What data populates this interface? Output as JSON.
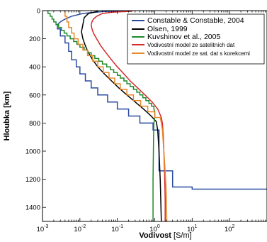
{
  "chart_data": {
    "type": "line",
    "title": "",
    "xlabel_main": "Vodivost",
    "xlabel_unit": " [S/m]",
    "ylabel": "Hloubka [km]",
    "x_scale": "log",
    "xlim": [
      0.001,
      1000
    ],
    "ylim": [
      1500,
      0
    ],
    "y_inverted": true,
    "grid": false,
    "legend_position": "top-right",
    "x_ticks": [
      {
        "value": 0.001,
        "base": "10",
        "exp": "-3"
      },
      {
        "value": 0.01,
        "base": "10",
        "exp": "-2"
      },
      {
        "value": 0.1,
        "base": "10",
        "exp": "-1"
      },
      {
        "value": 1,
        "base": "10",
        "exp": "0"
      },
      {
        "value": 10,
        "base": "10",
        "exp": "1"
      },
      {
        "value": 100,
        "base": "10",
        "exp": "2"
      }
    ],
    "y_ticks": [
      {
        "value": 0,
        "label": "0"
      },
      {
        "value": 200,
        "label": "200"
      },
      {
        "value": 400,
        "label": "400"
      },
      {
        "value": 600,
        "label": "600"
      },
      {
        "value": 800,
        "label": "800"
      },
      {
        "value": 1000,
        "label": "1000"
      },
      {
        "value": 1200,
        "label": "1200"
      },
      {
        "value": 1400,
        "label": "1400"
      }
    ],
    "series": [
      {
        "name": "Constable & Constable, 2004",
        "color": "#2a4aa0",
        "style": "step",
        "points": [
          [
            0.2,
            0
          ],
          [
            0.04,
            7
          ],
          [
            0.012,
            20
          ],
          [
            0.006,
            40
          ],
          [
            0.004,
            60
          ],
          [
            0.003,
            80
          ],
          [
            0.0025,
            100
          ],
          [
            0.0025,
            130
          ],
          [
            0.003,
            130
          ],
          [
            0.003,
            180
          ],
          [
            0.004,
            180
          ],
          [
            0.004,
            230
          ],
          [
            0.005,
            230
          ],
          [
            0.005,
            290
          ],
          [
            0.006,
            290
          ],
          [
            0.006,
            350
          ],
          [
            0.008,
            350
          ],
          [
            0.008,
            400
          ],
          [
            0.01,
            400
          ],
          [
            0.01,
            450
          ],
          [
            0.014,
            450
          ],
          [
            0.014,
            500
          ],
          [
            0.02,
            500
          ],
          [
            0.02,
            550
          ],
          [
            0.03,
            550
          ],
          [
            0.03,
            600
          ],
          [
            0.055,
            600
          ],
          [
            0.055,
            650
          ],
          [
            0.1,
            650
          ],
          [
            0.1,
            700
          ],
          [
            0.2,
            700
          ],
          [
            0.2,
            750
          ],
          [
            0.4,
            750
          ],
          [
            0.4,
            800
          ],
          [
            0.9,
            800
          ],
          [
            0.9,
            850
          ],
          [
            1.3,
            850
          ],
          [
            1.3,
            1140
          ],
          [
            3,
            1140
          ],
          [
            3,
            1255
          ],
          [
            10,
            1255
          ],
          [
            10,
            1270
          ],
          [
            1000,
            1270
          ]
        ]
      },
      {
        "name": "Olsen, 1999",
        "color": "#000000",
        "style": "step",
        "points": [
          [
            0.03,
            5
          ],
          [
            0.017,
            20
          ],
          [
            0.013,
            50
          ],
          [
            0.012,
            100
          ],
          [
            0.011,
            150
          ],
          [
            0.012,
            200
          ],
          [
            0.014,
            250
          ],
          [
            0.017,
            300
          ],
          [
            0.022,
            350
          ],
          [
            0.03,
            400
          ],
          [
            0.045,
            450
          ],
          [
            0.07,
            500
          ],
          [
            0.11,
            550
          ],
          [
            0.18,
            600
          ],
          [
            0.3,
            650
          ],
          [
            0.5,
            700
          ],
          [
            0.8,
            750
          ],
          [
            1.1,
            790
          ],
          [
            1.2,
            850
          ],
          [
            1.3,
            1000
          ],
          [
            1.4,
            1200
          ],
          [
            1.5,
            1500
          ]
        ]
      },
      {
        "name": "Kuvshinov et al., 2005",
        "color": "#1f8a2a",
        "style": "step",
        "points": [
          [
            0.0014,
            0
          ],
          [
            0.0014,
            20
          ],
          [
            0.0016,
            20
          ],
          [
            0.0016,
            40
          ],
          [
            0.0018,
            40
          ],
          [
            0.0018,
            60
          ],
          [
            0.002,
            60
          ],
          [
            0.002,
            80
          ],
          [
            0.0023,
            80
          ],
          [
            0.0023,
            100
          ],
          [
            0.0027,
            100
          ],
          [
            0.0027,
            120
          ],
          [
            0.0032,
            120
          ],
          [
            0.0032,
            140
          ],
          [
            0.0038,
            140
          ],
          [
            0.0038,
            160
          ],
          [
            0.0045,
            160
          ],
          [
            0.0045,
            180
          ],
          [
            0.0055,
            180
          ],
          [
            0.0055,
            200
          ],
          [
            0.0068,
            200
          ],
          [
            0.0068,
            220
          ],
          [
            0.0083,
            220
          ],
          [
            0.0083,
            240
          ],
          [
            0.01,
            240
          ],
          [
            0.01,
            260
          ],
          [
            0.013,
            260
          ],
          [
            0.013,
            280
          ],
          [
            0.016,
            280
          ],
          [
            0.016,
            300
          ],
          [
            0.02,
            300
          ],
          [
            0.02,
            320
          ],
          [
            0.025,
            320
          ],
          [
            0.025,
            340
          ],
          [
            0.032,
            340
          ],
          [
            0.032,
            360
          ],
          [
            0.04,
            360
          ],
          [
            0.04,
            380
          ],
          [
            0.052,
            380
          ],
          [
            0.052,
            400
          ],
          [
            0.065,
            400
          ],
          [
            0.065,
            420
          ],
          [
            0.08,
            420
          ],
          [
            0.08,
            440
          ],
          [
            0.1,
            440
          ],
          [
            0.1,
            460
          ],
          [
            0.12,
            460
          ],
          [
            0.12,
            480
          ],
          [
            0.15,
            480
          ],
          [
            0.15,
            500
          ],
          [
            0.18,
            500
          ],
          [
            0.18,
            520
          ],
          [
            0.22,
            520
          ],
          [
            0.22,
            540
          ],
          [
            0.27,
            540
          ],
          [
            0.27,
            560
          ],
          [
            0.33,
            560
          ],
          [
            0.33,
            580
          ],
          [
            0.4,
            580
          ],
          [
            0.4,
            600
          ],
          [
            0.48,
            600
          ],
          [
            0.48,
            620
          ],
          [
            0.58,
            620
          ],
          [
            0.58,
            640
          ],
          [
            0.7,
            640
          ],
          [
            0.7,
            660
          ],
          [
            0.82,
            660
          ],
          [
            0.82,
            680
          ],
          [
            0.95,
            680
          ],
          [
            0.95,
            700
          ],
          [
            1.0,
            720
          ],
          [
            1.0,
            760
          ],
          [
            0.95,
            800
          ],
          [
            0.93,
            900
          ],
          [
            0.92,
            1000
          ],
          [
            0.9,
            1200
          ],
          [
            0.9,
            1500
          ]
        ]
      },
      {
        "name": "Vodivostní model ze satelitních dat",
        "color": "#d42a2a",
        "style": "line",
        "points": [
          [
            0.25,
            5
          ],
          [
            0.08,
            10
          ],
          [
            0.04,
            20
          ],
          [
            0.028,
            40
          ],
          [
            0.023,
            60
          ],
          [
            0.021,
            80
          ],
          [
            0.02,
            100
          ],
          [
            0.021,
            130
          ],
          [
            0.023,
            160
          ],
          [
            0.028,
            200
          ],
          [
            0.036,
            250
          ],
          [
            0.05,
            300
          ],
          [
            0.07,
            350
          ],
          [
            0.1,
            400
          ],
          [
            0.15,
            450
          ],
          [
            0.22,
            500
          ],
          [
            0.35,
            550
          ],
          [
            0.55,
            600
          ],
          [
            0.85,
            650
          ],
          [
            1.2,
            700
          ],
          [
            1.5,
            760
          ],
          [
            1.6,
            800
          ],
          [
            1.7,
            900
          ],
          [
            1.75,
            1000
          ],
          [
            1.8,
            1100
          ],
          [
            1.85,
            1200
          ],
          [
            1.9,
            1350
          ],
          [
            1.9,
            1500
          ]
        ]
      },
      {
        "name": "Vodivostní model ze sat. dat s korekcemi",
        "color": "#e8882a",
        "style": "step",
        "points": [
          [
            0.004,
            0
          ],
          [
            0.004,
            40
          ],
          [
            0.0045,
            40
          ],
          [
            0.0045,
            80
          ],
          [
            0.005,
            80
          ],
          [
            0.005,
            120
          ],
          [
            0.006,
            120
          ],
          [
            0.006,
            160
          ],
          [
            0.007,
            160
          ],
          [
            0.007,
            200
          ],
          [
            0.009,
            200
          ],
          [
            0.009,
            240
          ],
          [
            0.012,
            240
          ],
          [
            0.012,
            280
          ],
          [
            0.016,
            280
          ],
          [
            0.016,
            320
          ],
          [
            0.022,
            320
          ],
          [
            0.022,
            360
          ],
          [
            0.03,
            360
          ],
          [
            0.03,
            400
          ],
          [
            0.042,
            400
          ],
          [
            0.042,
            440
          ],
          [
            0.06,
            440
          ],
          [
            0.06,
            480
          ],
          [
            0.085,
            480
          ],
          [
            0.085,
            520
          ],
          [
            0.12,
            520
          ],
          [
            0.12,
            560
          ],
          [
            0.18,
            560
          ],
          [
            0.18,
            600
          ],
          [
            0.27,
            600
          ],
          [
            0.27,
            640
          ],
          [
            0.42,
            640
          ],
          [
            0.42,
            680
          ],
          [
            0.65,
            680
          ],
          [
            0.65,
            720
          ],
          [
            1.0,
            720
          ],
          [
            1.0,
            760
          ],
          [
            1.4,
            760
          ],
          [
            1.5,
            800
          ],
          [
            1.6,
            850
          ],
          [
            1.7,
            950
          ],
          [
            1.8,
            1050
          ],
          [
            1.9,
            1150
          ],
          [
            2.0,
            1250
          ],
          [
            2.05,
            1350
          ],
          [
            2.1,
            1500
          ]
        ]
      }
    ]
  }
}
